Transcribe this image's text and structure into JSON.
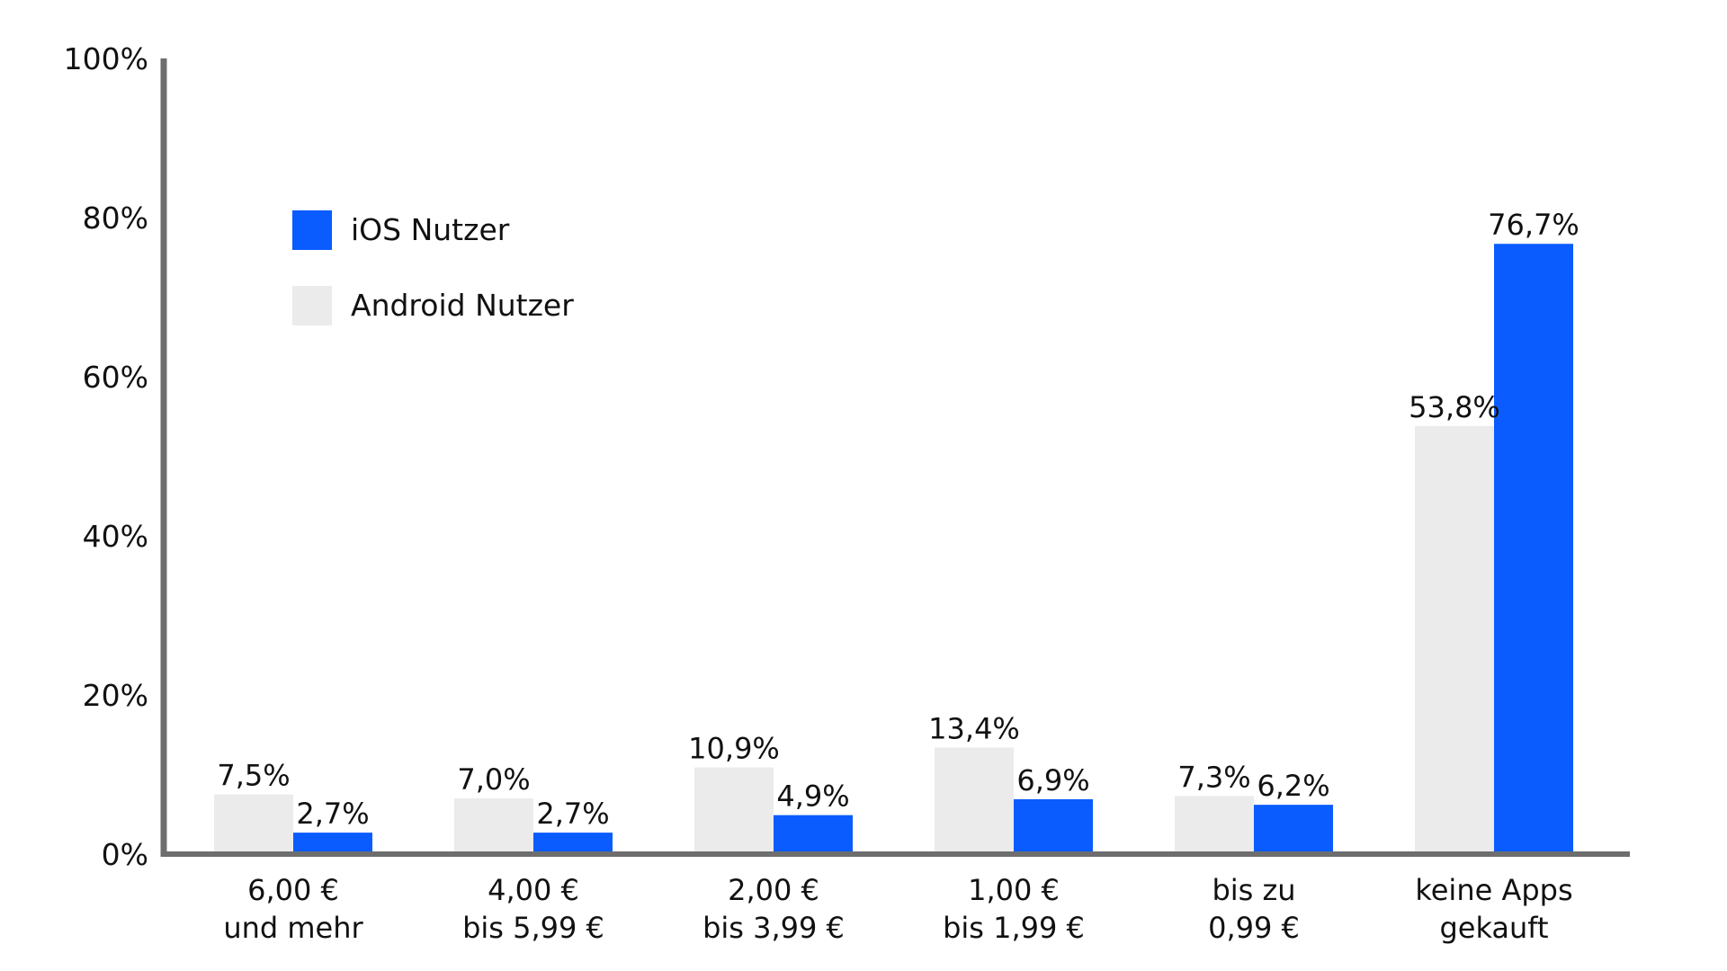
{
  "chart_data": {
    "type": "bar",
    "title": "",
    "xlabel": "",
    "ylabel": "",
    "ylim": [
      0,
      100
    ],
    "y_ticks": [
      "0%",
      "20%",
      "40%",
      "60%",
      "80%",
      "100%"
    ],
    "grid": false,
    "legend_position": "top-left",
    "categories": [
      [
        "6,00 €",
        "und mehr"
      ],
      [
        "4,00 €",
        "bis 5,99 €"
      ],
      [
        "2,00 €",
        "bis 3,99 €"
      ],
      [
        "1,00 €",
        "bis 1,99 €"
      ],
      [
        "bis zu",
        "0,99 €"
      ],
      [
        "keine Apps",
        "gekauft"
      ]
    ],
    "series": [
      {
        "name": "Android Nutzer",
        "color": "#ebebeb",
        "values": [
          7.5,
          7.0,
          10.9,
          13.4,
          7.3,
          53.8
        ],
        "labels": [
          "7,5%",
          "7,0%",
          "10,9%",
          "13,4%",
          "7,3%",
          "53,8%"
        ]
      },
      {
        "name": "iOS Nutzer",
        "color": "#0a5cff",
        "values": [
          2.7,
          2.7,
          4.9,
          6.9,
          6.2,
          76.7
        ],
        "labels": [
          "2,7%",
          "2,7%",
          "4,9%",
          "6,9%",
          "6,2%",
          "76,7%"
        ]
      }
    ],
    "legend": [
      {
        "name": "iOS Nutzer",
        "color": "#0a5cff"
      },
      {
        "name": "Android Nutzer",
        "color": "#ebebeb"
      }
    ],
    "axis_color": "#6e6e6e"
  }
}
